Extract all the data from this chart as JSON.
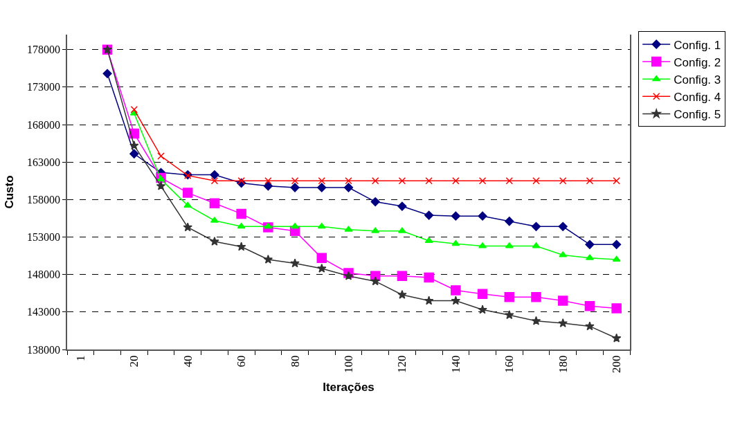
{
  "chart_data": {
    "type": "line",
    "xlabel": "Iterações",
    "ylabel": "Custo",
    "categories": [
      "1",
      null,
      "20",
      null,
      "40",
      null,
      "60",
      null,
      "80",
      null,
      "100",
      null,
      "120",
      null,
      "140",
      null,
      "160",
      null,
      "180",
      null,
      "200"
    ],
    "ylim": [
      138000,
      180000
    ],
    "yticks": [
      138000,
      143000,
      148000,
      153000,
      158000,
      163000,
      168000,
      173000,
      178000
    ],
    "grid": "y",
    "legend": "top right",
    "series": [
      {
        "name": "Config. 1",
        "color": "#000080",
        "marker": "diamond",
        "values": [
          null,
          174800,
          164100,
          161600,
          161300,
          161300,
          160200,
          159800,
          159600,
          159600,
          159600,
          157700,
          157100,
          155900,
          155800,
          155800,
          155100,
          154400,
          154400,
          152000,
          152000
        ]
      },
      {
        "name": "Config. 2",
        "color": "#ff00ff",
        "marker": "square",
        "values": [
          null,
          178000,
          166800,
          160900,
          158900,
          157500,
          156100,
          154300,
          153800,
          150200,
          148200,
          147800,
          147800,
          147600,
          145900,
          145400,
          145000,
          145000,
          144500,
          143800,
          143500
        ]
      },
      {
        "name": "Config. 3",
        "color": "#00ff00",
        "marker": "triangle",
        "values": [
          null,
          null,
          169500,
          160700,
          157200,
          155200,
          154400,
          154400,
          154400,
          154400,
          154000,
          153800,
          153800,
          152500,
          152100,
          151800,
          151800,
          151800,
          150600,
          150200,
          150000
        ]
      },
      {
        "name": "Config. 4",
        "color": "#ff0000",
        "marker": "cross",
        "values": [
          null,
          null,
          170000,
          163800,
          161200,
          160500,
          160500,
          160500,
          160500,
          160500,
          160500,
          160500,
          160500,
          160500,
          160500,
          160500,
          160500,
          160500,
          160500,
          160500,
          160500
        ]
      },
      {
        "name": "Config. 5",
        "color": "#333333",
        "marker": "star",
        "values": [
          null,
          178000,
          165200,
          159800,
          154300,
          152400,
          151700,
          150000,
          149500,
          148800,
          147800,
          147100,
          145300,
          144500,
          144500,
          143300,
          142600,
          141800,
          141500,
          141100,
          139500
        ]
      }
    ]
  }
}
